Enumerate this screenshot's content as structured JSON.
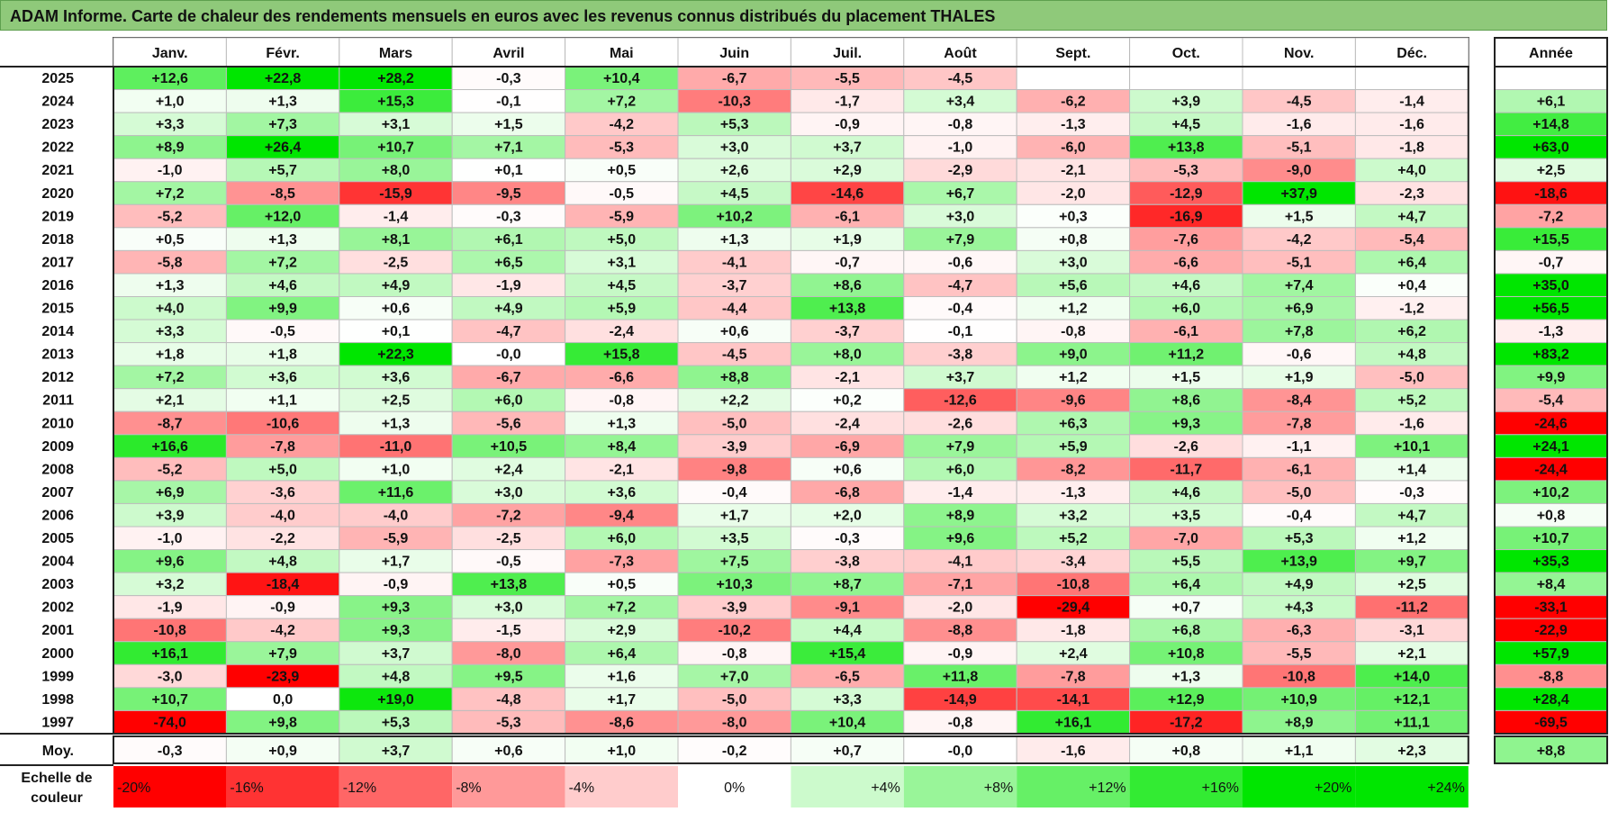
{
  "title": "ADAM Informe. Carte de chaleur des rendements mensuels en euros avec les revenus connus distribués du placement THALES",
  "chart_data": {
    "type": "heatmap",
    "title": "ADAM Informe. Carte de chaleur des rendements mensuels en euros avec les revenus connus distribués du placement THALES",
    "columns": [
      "Janv.",
      "Févr.",
      "Mars",
      "Avril",
      "Mai",
      "Juin",
      "Juil.",
      "Août",
      "Sept.",
      "Oct.",
      "Nov.",
      "Déc."
    ],
    "year_column_label": "Année",
    "rows": [
      {
        "year": "2025",
        "values": [
          "+12,6",
          "+22,8",
          "+28,2",
          "-0,3",
          "+10,4",
          "-6,7",
          "-5,5",
          "-4,5",
          "",
          "",
          "",
          ""
        ],
        "annual": ""
      },
      {
        "year": "2024",
        "values": [
          "+1,0",
          "+1,3",
          "+15,3",
          "-0,1",
          "+7,2",
          "-10,3",
          "-1,7",
          "+3,4",
          "-6,2",
          "+3,9",
          "-4,5",
          "-1,4"
        ],
        "annual": "+6,1"
      },
      {
        "year": "2023",
        "values": [
          "+3,3",
          "+7,3",
          "+3,1",
          "+1,5",
          "-4,2",
          "+5,3",
          "-0,9",
          "-0,8",
          "-1,3",
          "+4,5",
          "-1,6",
          "-1,6"
        ],
        "annual": "+14,8"
      },
      {
        "year": "2022",
        "values": [
          "+8,9",
          "+26,4",
          "+10,7",
          "+7,1",
          "-5,3",
          "+3,0",
          "+3,7",
          "-1,0",
          "-6,0",
          "+13,8",
          "-5,1",
          "-1,8"
        ],
        "annual": "+63,0"
      },
      {
        "year": "2021",
        "values": [
          "-1,0",
          "+5,7",
          "+8,0",
          "+0,1",
          "+0,5",
          "+2,6",
          "+2,9",
          "-2,9",
          "-2,1",
          "-5,3",
          "-9,0",
          "+4,0"
        ],
        "annual": "+2,5"
      },
      {
        "year": "2020",
        "values": [
          "+7,2",
          "-8,5",
          "-15,9",
          "-9,5",
          "-0,5",
          "+4,5",
          "-14,6",
          "+6,7",
          "-2,0",
          "-12,9",
          "+37,9",
          "-2,3"
        ],
        "annual": "-18,6"
      },
      {
        "year": "2019",
        "values": [
          "-5,2",
          "+12,0",
          "-1,4",
          "-0,3",
          "-5,9",
          "+10,2",
          "-6,1",
          "+3,0",
          "+0,3",
          "-16,9",
          "+1,5",
          "+4,7"
        ],
        "annual": "-7,2"
      },
      {
        "year": "2018",
        "values": [
          "+0,5",
          "+1,3",
          "+8,1",
          "+6,1",
          "+5,0",
          "+1,3",
          "+1,9",
          "+7,9",
          "+0,8",
          "-7,6",
          "-4,2",
          "-5,4"
        ],
        "annual": "+15,5"
      },
      {
        "year": "2017",
        "values": [
          "-5,8",
          "+7,2",
          "-2,5",
          "+6,5",
          "+3,1",
          "-4,1",
          "-0,7",
          "-0,6",
          "+3,0",
          "-6,6",
          "-5,1",
          "+6,4"
        ],
        "annual": "-0,7"
      },
      {
        "year": "2016",
        "values": [
          "+1,3",
          "+4,6",
          "+4,9",
          "-1,9",
          "+4,5",
          "-3,7",
          "+8,6",
          "-4,7",
          "+5,6",
          "+4,6",
          "+7,4",
          "+0,4"
        ],
        "annual": "+35,0"
      },
      {
        "year": "2015",
        "values": [
          "+4,0",
          "+9,9",
          "+0,6",
          "+4,9",
          "+5,9",
          "-4,4",
          "+13,8",
          "-0,4",
          "+1,2",
          "+6,0",
          "+6,9",
          "-1,2"
        ],
        "annual": "+56,5"
      },
      {
        "year": "2014",
        "values": [
          "+3,3",
          "-0,5",
          "+0,1",
          "-4,7",
          "-2,4",
          "+0,6",
          "-3,7",
          "-0,1",
          "-0,8",
          "-6,1",
          "+7,8",
          "+6,2"
        ],
        "annual": "-1,3"
      },
      {
        "year": "2013",
        "values": [
          "+1,8",
          "+1,8",
          "+22,3",
          "-0,0",
          "+15,8",
          "-4,5",
          "+8,0",
          "-3,8",
          "+9,0",
          "+11,2",
          "-0,6",
          "+4,8"
        ],
        "annual": "+83,2"
      },
      {
        "year": "2012",
        "values": [
          "+7,2",
          "+3,6",
          "+3,6",
          "-6,7",
          "-6,6",
          "+8,8",
          "-2,1",
          "+3,7",
          "+1,2",
          "+1,5",
          "+1,9",
          "-5,0"
        ],
        "annual": "+9,9"
      },
      {
        "year": "2011",
        "values": [
          "+2,1",
          "+1,1",
          "+2,5",
          "+6,0",
          "-0,8",
          "+2,2",
          "+0,2",
          "-12,6",
          "-9,6",
          "+8,6",
          "-8,4",
          "+5,2"
        ],
        "annual": "-5,4"
      },
      {
        "year": "2010",
        "values": [
          "-8,7",
          "-10,6",
          "+1,3",
          "-5,6",
          "+1,3",
          "-5,0",
          "-2,4",
          "-2,6",
          "+6,3",
          "+9,3",
          "-7,8",
          "-1,6"
        ],
        "annual": "-24,6"
      },
      {
        "year": "2009",
        "values": [
          "+16,6",
          "-7,8",
          "-11,0",
          "+10,5",
          "+8,4",
          "-3,9",
          "-6,9",
          "+7,9",
          "+5,9",
          "-2,6",
          "-1,1",
          "+10,1"
        ],
        "annual": "+24,1"
      },
      {
        "year": "2008",
        "values": [
          "-5,2",
          "+5,0",
          "+1,0",
          "+2,4",
          "-2,1",
          "-9,8",
          "+0,6",
          "+6,0",
          "-8,2",
          "-11,7",
          "-6,1",
          "+1,4"
        ],
        "annual": "-24,4"
      },
      {
        "year": "2007",
        "values": [
          "+6,9",
          "-3,6",
          "+11,6",
          "+3,0",
          "+3,6",
          "-0,4",
          "-6,8",
          "-1,4",
          "-1,3",
          "+4,6",
          "-5,0",
          "-0,3"
        ],
        "annual": "+10,2"
      },
      {
        "year": "2006",
        "values": [
          "+3,9",
          "-4,0",
          "-4,0",
          "-7,2",
          "-9,4",
          "+1,7",
          "+2,0",
          "+8,9",
          "+3,2",
          "+3,5",
          "-0,4",
          "+4,7"
        ],
        "annual": "+0,8"
      },
      {
        "year": "2005",
        "values": [
          "-1,0",
          "-2,2",
          "-5,9",
          "-2,5",
          "+6,0",
          "+3,5",
          "-0,3",
          "+9,6",
          "+5,2",
          "-7,0",
          "+5,3",
          "+1,2"
        ],
        "annual": "+10,7"
      },
      {
        "year": "2004",
        "values": [
          "+9,6",
          "+4,8",
          "+1,7",
          "-0,5",
          "-7,3",
          "+7,5",
          "-3,8",
          "-4,1",
          "-3,4",
          "+5,5",
          "+13,9",
          "+9,7"
        ],
        "annual": "+35,3"
      },
      {
        "year": "2003",
        "values": [
          "+3,2",
          "-18,4",
          "-0,9",
          "+13,8",
          "+0,5",
          "+10,3",
          "+8,7",
          "-7,1",
          "-10,8",
          "+6,4",
          "+4,9",
          "+2,5"
        ],
        "annual": "+8,4"
      },
      {
        "year": "2002",
        "values": [
          "-1,9",
          "-0,9",
          "+9,3",
          "+3,0",
          "+7,2",
          "-3,9",
          "-9,1",
          "-2,0",
          "-29,4",
          "+0,7",
          "+4,3",
          "-11,2"
        ],
        "annual": "-33,1"
      },
      {
        "year": "2001",
        "values": [
          "-10,8",
          "-4,2",
          "+9,3",
          "-1,5",
          "+2,9",
          "-10,2",
          "+4,4",
          "-8,8",
          "-1,8",
          "+6,8",
          "-6,3",
          "-3,1"
        ],
        "annual": "-22,9"
      },
      {
        "year": "2000",
        "values": [
          "+16,1",
          "+7,9",
          "+3,7",
          "-8,0",
          "+6,4",
          "-0,8",
          "+15,4",
          "-0,9",
          "+2,4",
          "+10,8",
          "-5,5",
          "+2,1"
        ],
        "annual": "+57,9"
      },
      {
        "year": "1999",
        "values": [
          "-3,0",
          "-23,9",
          "+4,8",
          "+9,5",
          "+1,6",
          "+7,0",
          "-6,5",
          "+11,8",
          "-7,8",
          "+1,3",
          "-10,8",
          "+14,0"
        ],
        "annual": "-8,8"
      },
      {
        "year": "1998",
        "values": [
          "+10,7",
          "0,0",
          "+19,0",
          "-4,8",
          "+1,7",
          "-5,0",
          "+3,3",
          "-14,9",
          "-14,1",
          "+12,9",
          "+10,9",
          "+12,1"
        ],
        "annual": "+28,4"
      },
      {
        "year": "1997",
        "values": [
          "-74,0",
          "+9,8",
          "+5,3",
          "-5,3",
          "-8,6",
          "-8,0",
          "+10,4",
          "-0,8",
          "+16,1",
          "-17,2",
          "+8,9",
          "+11,1"
        ],
        "annual": "-69,5"
      }
    ],
    "average": {
      "label": "Moy.",
      "values": [
        "-0,3",
        "+0,9",
        "+3,7",
        "+0,6",
        "+1,0",
        "-0,2",
        "+0,7",
        "-0,0",
        "-1,6",
        "+0,8",
        "+1,1",
        "+2,3"
      ],
      "annual": "+8,8"
    },
    "color_scale": {
      "label_line1": "Echelle de",
      "label_line2": "couleur",
      "stops": [
        {
          "label": "-20%",
          "value": -20
        },
        {
          "label": "-16%",
          "value": -16
        },
        {
          "label": "-12%",
          "value": -12
        },
        {
          "label": "-8%",
          "value": -8
        },
        {
          "label": "-4%",
          "value": -4
        },
        {
          "label": "0%",
          "value": 0
        },
        {
          "label": "+4%",
          "value": 4
        },
        {
          "label": "+8%",
          "value": 8
        },
        {
          "label": "+12%",
          "value": 12
        },
        {
          "label": "+16%",
          "value": 16
        },
        {
          "label": "+20%",
          "value": 20
        },
        {
          "label": "+24%",
          "value": 24
        }
      ]
    },
    "colors": {
      "negative": "#ff0000",
      "positive": "#00e600",
      "neutral": "#ffffff",
      "title_bar": "#8fc97a"
    }
  }
}
